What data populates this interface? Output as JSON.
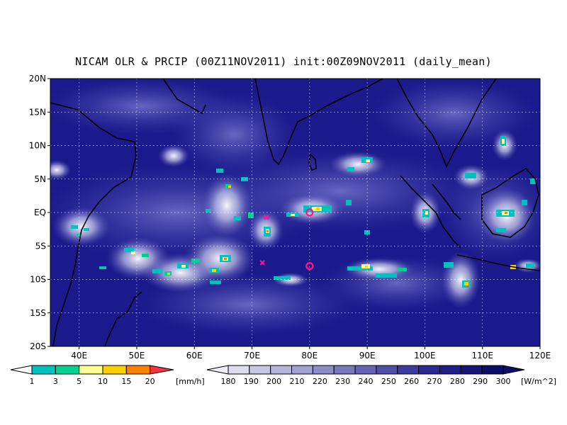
{
  "title": "NICAM OLR & PRCIP (00Z11NOV2011) init:00Z09NOV2011 (daily_mean)",
  "map": {
    "lon_range": [
      35,
      120
    ],
    "lat_range": [
      -20,
      20
    ],
    "lon_ticks": [
      "40E",
      "50E",
      "60E",
      "70E",
      "80E",
      "90E",
      "100E",
      "110E",
      "120E"
    ],
    "lat_ticks": [
      "20N",
      "15N",
      "10N",
      "5N",
      "EQ",
      "5S",
      "10S",
      "15S",
      "20S"
    ]
  },
  "precip_colorbar": {
    "labels": [
      "1",
      "3",
      "5",
      "10",
      "15",
      "20"
    ],
    "unit": "[mm/h]",
    "colors": [
      "#00c0c0",
      "#00d090",
      "#ffff90",
      "#ffd000",
      "#ff8000",
      "#ff3040"
    ]
  },
  "olr_colorbar": {
    "labels": [
      "180",
      "190",
      "200",
      "210",
      "220",
      "230",
      "240",
      "250",
      "260",
      "270",
      "280",
      "290",
      "300"
    ],
    "unit": "[W/m^2]",
    "colors": [
      "#eeeef6",
      "#dcdcee",
      "#c8c8e6",
      "#b4b4dc",
      "#a0a0d2",
      "#8c8cc8",
      "#7878be",
      "#6464b4",
      "#5050aa",
      "#3c3ca0",
      "#282896",
      "#1c1c8a",
      "#14147a",
      "#0c0c6a"
    ]
  },
  "markers": [
    {
      "type": "x",
      "lon": 72.5,
      "lat": -0.7,
      "color": "#ff1493"
    },
    {
      "type": "x",
      "lon": 71.8,
      "lat": -7.5,
      "color": "#ff1493"
    },
    {
      "type": "o",
      "lon": 80.0,
      "lat": 0.0,
      "color": "#ff1493"
    },
    {
      "type": "o",
      "lon": 80.0,
      "lat": -8.0,
      "color": "#ff1493"
    }
  ]
}
